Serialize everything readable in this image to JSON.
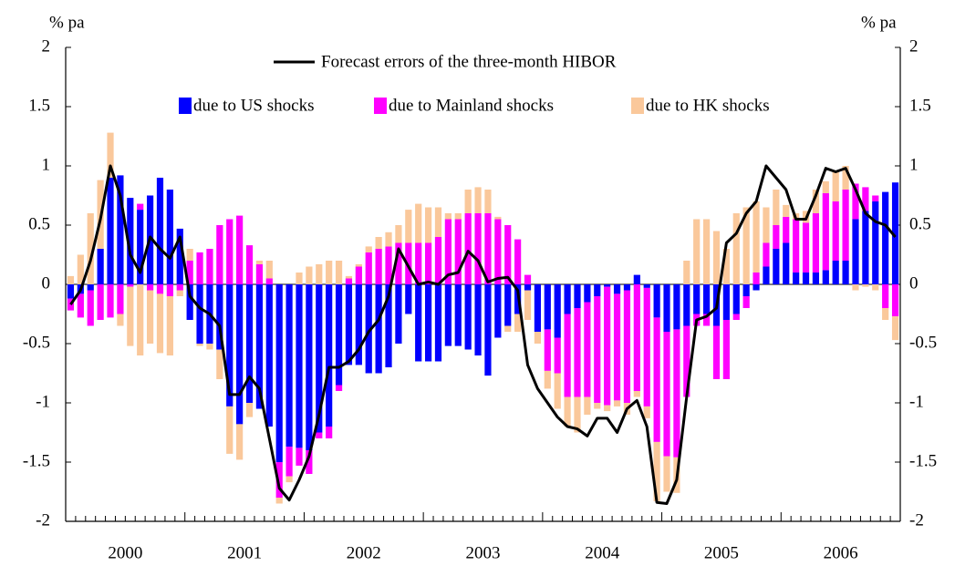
{
  "chart_data": {
    "type": "bar",
    "y_label": "% pa",
    "y2_label": "% pa",
    "categories": [
      "2000",
      null,
      null,
      null,
      null,
      null,
      null,
      null,
      null,
      null,
      null,
      null,
      "2001",
      null,
      null,
      null,
      null,
      null,
      null,
      null,
      null,
      null,
      null,
      null,
      "2002",
      null,
      null,
      null,
      null,
      null,
      null,
      null,
      null,
      null,
      null,
      null,
      "2003",
      null,
      null,
      null,
      null,
      null,
      null,
      null,
      null,
      null,
      null,
      null,
      "2004",
      null,
      null,
      null,
      null,
      null,
      null,
      null,
      null,
      null,
      null,
      null,
      "2005",
      null,
      null,
      null,
      null,
      null,
      null,
      null,
      null,
      null,
      null,
      null,
      "2006",
      null,
      null,
      null,
      null,
      null,
      null,
      null,
      null,
      null,
      null,
      null
    ],
    "series": [
      {
        "name": "due to US shocks",
        "type": "bar",
        "color": "#0000ff",
        "values": [
          -0.12,
          -0.08,
          -0.05,
          0.3,
          0.9,
          0.92,
          0.73,
          0.63,
          0.75,
          0.9,
          0.8,
          0.47,
          -0.3,
          -0.5,
          -0.5,
          -0.55,
          -1.03,
          -1.18,
          -1.0,
          -1.05,
          -1.2,
          -1.5,
          -1.37,
          -1.38,
          -1.4,
          -1.25,
          -1.2,
          -0.85,
          -0.68,
          -0.68,
          -0.75,
          -0.75,
          -0.7,
          -0.5,
          -0.25,
          -0.65,
          -0.65,
          -0.65,
          -0.52,
          -0.52,
          -0.55,
          -0.6,
          -0.77,
          -0.45,
          -0.35,
          -0.25,
          -0.05,
          -0.4,
          -0.38,
          -0.45,
          -0.25,
          -0.2,
          -0.15,
          -0.1,
          -0.02,
          -0.08,
          -0.05,
          0.08,
          -0.03,
          -0.28,
          -0.4,
          -0.38,
          -0.35,
          -0.25,
          -0.25,
          -0.35,
          -0.3,
          -0.25,
          -0.1,
          -0.05,
          0.15,
          0.3,
          0.35,
          0.1,
          0.1,
          0.1,
          0.12,
          0.2,
          0.2,
          0.55,
          0.62,
          0.7,
          0.78,
          0.86
        ]
      },
      {
        "name": "due to Mainland shocks",
        "type": "bar",
        "color": "#ff00ff",
        "values": [
          -0.1,
          -0.2,
          -0.3,
          -0.3,
          -0.28,
          -0.25,
          -0.02,
          0.05,
          -0.05,
          -0.08,
          -0.1,
          -0.05,
          0.2,
          0.27,
          0.3,
          0.5,
          0.55,
          0.58,
          0.33,
          0.17,
          0.05,
          -0.3,
          -0.25,
          -0.15,
          -0.2,
          -0.05,
          -0.1,
          -0.05,
          0.05,
          0.15,
          0.27,
          0.3,
          0.32,
          0.35,
          0.35,
          0.35,
          0.35,
          0.4,
          0.55,
          0.55,
          0.6,
          0.6,
          0.6,
          0.55,
          0.5,
          0.38,
          0.08,
          0.0,
          -0.35,
          -0.3,
          -0.7,
          -0.75,
          -0.8,
          -0.9,
          -1.0,
          -0.9,
          -0.95,
          -0.9,
          -1.0,
          -1.05,
          -1.05,
          -1.08,
          -0.6,
          -0.1,
          -0.1,
          -0.45,
          -0.5,
          -0.05,
          -0.1,
          0.1,
          0.2,
          0.2,
          0.22,
          0.45,
          0.42,
          0.5,
          0.65,
          0.5,
          0.6,
          0.3,
          0.2,
          0.05,
          -0.2,
          -0.27
        ]
      },
      {
        "name": "due to HK shocks",
        "type": "bar",
        "color": "#fac89b",
        "values": [
          0.07,
          0.25,
          0.6,
          0.58,
          0.38,
          -0.1,
          -0.5,
          -0.6,
          -0.45,
          -0.5,
          -0.5,
          -0.05,
          0.1,
          -0.02,
          -0.05,
          -0.25,
          -0.4,
          -0.3,
          -0.12,
          0.03,
          0.15,
          -0.05,
          -0.05,
          0.1,
          0.15,
          0.17,
          0.2,
          0.2,
          0.02,
          0.02,
          0.05,
          0.1,
          0.12,
          0.15,
          0.28,
          0.33,
          0.3,
          0.25,
          0.05,
          0.05,
          0.2,
          0.22,
          0.2,
          0.02,
          -0.05,
          -0.15,
          -0.25,
          -0.1,
          -0.15,
          -0.3,
          -0.25,
          -0.3,
          -0.15,
          -0.05,
          -0.05,
          -0.05,
          -0.1,
          -0.05,
          -0.1,
          -0.5,
          -0.3,
          -0.3,
          0.2,
          0.55,
          0.55,
          0.45,
          0.3,
          0.6,
          0.65,
          0.6,
          0.3,
          0.3,
          0.1,
          0.05,
          0.1,
          0.2,
          0.1,
          0.25,
          0.2,
          -0.05,
          -0.02,
          -0.05,
          -0.1,
          -0.2
        ]
      },
      {
        "name": "Forecast errors of the three-month HIBOR",
        "type": "line",
        "color": "#000000",
        "values": [
          -0.17,
          -0.05,
          0.2,
          0.55,
          1.0,
          0.75,
          0.25,
          0.1,
          0.4,
          0.3,
          0.22,
          0.4,
          -0.1,
          -0.2,
          -0.25,
          -0.35,
          -0.93,
          -0.93,
          -0.78,
          -0.88,
          -1.3,
          -1.72,
          -1.82,
          -1.65,
          -1.45,
          -1.1,
          -0.7,
          -0.7,
          -0.65,
          -0.55,
          -0.4,
          -0.3,
          -0.1,
          0.3,
          0.15,
          0.0,
          0.02,
          0.0,
          0.08,
          0.1,
          0.28,
          0.2,
          0.02,
          0.05,
          0.06,
          -0.05,
          -0.68,
          -0.88,
          -1.0,
          -1.12,
          -1.2,
          -1.22,
          -1.28,
          -1.13,
          -1.13,
          -1.25,
          -1.05,
          -0.98,
          -1.2,
          -1.84,
          -1.85,
          -1.65,
          -0.95,
          -0.3,
          -0.27,
          -0.2,
          0.35,
          0.43,
          0.6,
          0.7,
          1.0,
          0.9,
          0.8,
          0.55,
          0.55,
          0.75,
          0.98,
          0.95,
          0.98,
          0.8,
          0.6,
          0.53,
          0.5,
          0.4
        ]
      }
    ],
    "ylim": [
      -2,
      2
    ],
    "yticks": [
      -2,
      -1.5,
      -1,
      -0.5,
      0,
      0.5,
      1,
      1.5,
      2
    ],
    "y2lim": [
      -2,
      2
    ],
    "y2ticks": [
      -2,
      -1.5,
      -1,
      -0.5,
      0,
      0.5,
      1,
      1.5,
      2
    ]
  }
}
